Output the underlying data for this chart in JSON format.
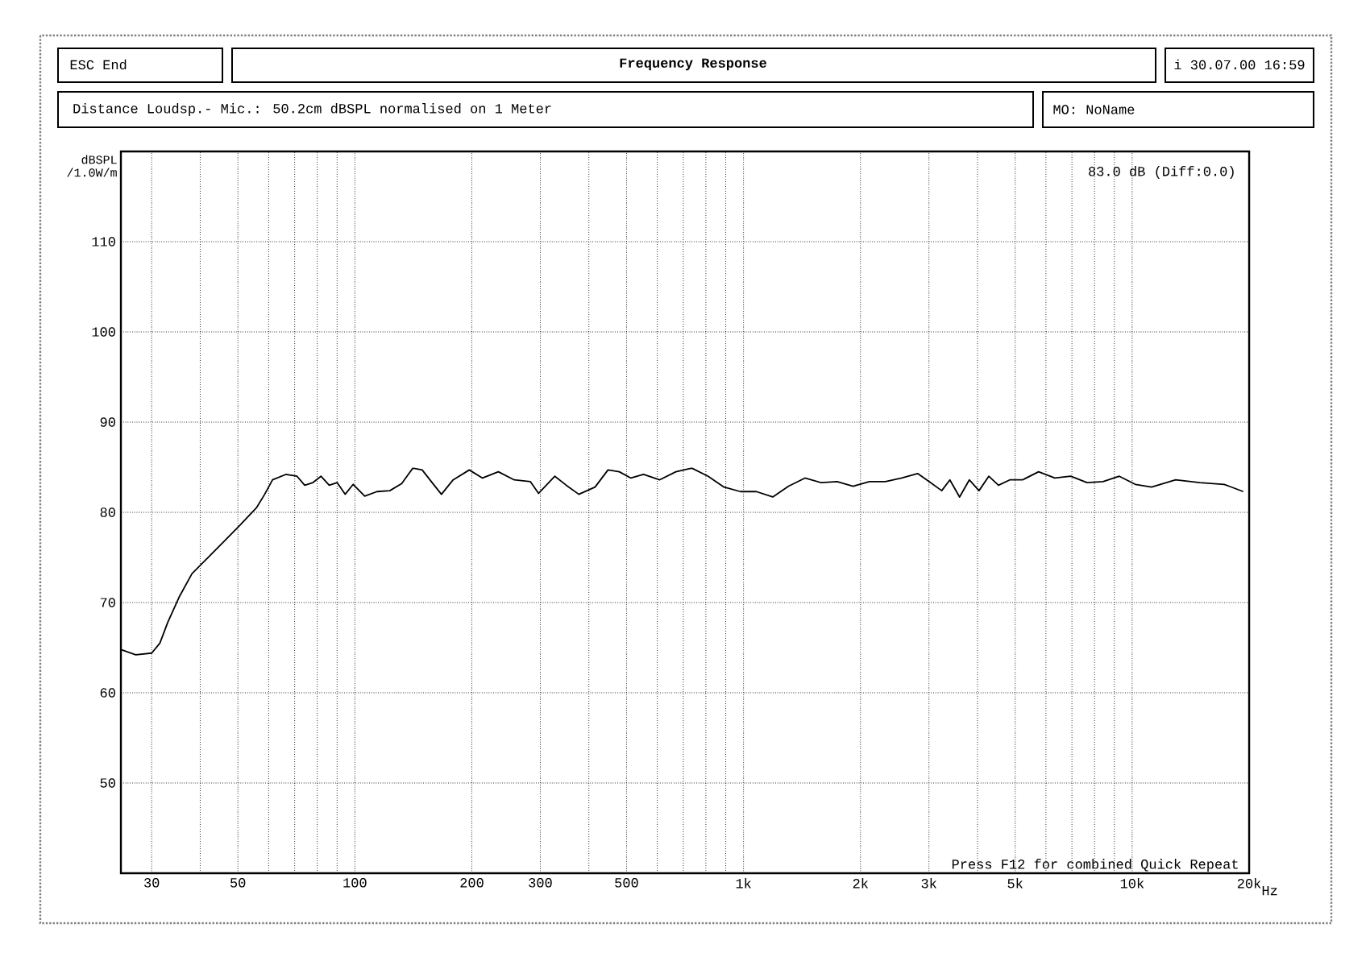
{
  "chart_data": {
    "type": "line",
    "title": "Frequency Response",
    "subtitle": "Distance Loudsp.- Mic.: 50.2cm dBSPL normalised on 1 Meter",
    "ylabel": "dBSPL /1.0W/m",
    "annotations": [
      "ESC End",
      "i 30.07.00 16:59",
      "MO: NoName",
      "83.0 dB (Diff:0.0)",
      "Press F12 for combined Quick Repeat"
    ],
    "log": "x",
    "grid": true,
    "xlim": [
      25,
      20000
    ],
    "ylim": [
      40,
      120
    ],
    "xticks": [
      30,
      50,
      100,
      200,
      300,
      500,
      {
        "value": 1000,
        "label": "1k"
      },
      {
        "value": 2000,
        "label": "2k"
      },
      {
        "value": 3000,
        "label": "3k"
      },
      {
        "value": 5000,
        "label": "5k"
      },
      {
        "value": 10000,
        "label": "10k"
      },
      {
        "value": 20000,
        "label": "20k"
      }
    ],
    "xlabel": "Hz",
    "yticks": [
      50,
      60,
      70,
      80,
      90,
      100,
      110
    ],
    "series": [
      {
        "color": "#000000",
        "x": [
          25,
          27.3,
          30,
          31.5,
          33,
          35.3,
          38.1,
          41.9,
          46.1,
          50.7,
          55.8,
          58.6,
          61.4,
          66.4,
          71,
          74.3,
          78,
          81.8,
          85.9,
          90,
          94.4,
          99,
          106,
          114,
          123,
          132,
          141,
          149,
          160,
          167,
          179,
          197,
          213,
          234,
          257,
          283,
          297,
          327,
          350,
          377,
          415,
          448,
          479,
          513,
          553,
          608,
          670,
          736,
          811,
          891,
          982,
          1079,
          1189,
          1306,
          1439,
          1581,
          1742,
          1914,
          2108,
          2317,
          2553,
          2805,
          3027,
          3236,
          3396,
          3597,
          3811,
          4036,
          4276,
          4529,
          4842,
          5224,
          5745,
          6324,
          6950,
          7656,
          8414,
          9268,
          10190,
          11220,
          12940,
          14930,
          17260,
          19320
        ],
        "values": [
          64.8,
          64.2,
          64.4,
          65.5,
          67.8,
          70.6,
          73.2,
          75,
          76.8,
          78.6,
          80.5,
          82,
          83.6,
          84.2,
          84,
          83,
          83.3,
          84,
          83,
          83.3,
          82,
          83.1,
          81.8,
          82.3,
          82.4,
          83.2,
          84.9,
          84.7,
          83,
          82,
          83.6,
          84.7,
          83.8,
          84.5,
          83.6,
          83.4,
          82.1,
          84,
          83,
          82,
          82.8,
          84.7,
          84.5,
          83.8,
          84.2,
          83.6,
          84.5,
          84.9,
          84,
          82.8,
          82.3,
          82.3,
          81.7,
          82.9,
          83.8,
          83.3,
          83.4,
          82.9,
          83.4,
          83.4,
          83.8,
          84.3,
          83.3,
          82.4,
          83.6,
          81.7,
          83.6,
          82.4,
          84,
          83,
          83.6,
          83.6,
          84.5,
          83.8,
          84,
          83.3,
          83.4,
          84,
          83.1,
          82.8,
          83.6,
          83.3,
          83.1,
          82.3
        ]
      }
    ]
  }
}
